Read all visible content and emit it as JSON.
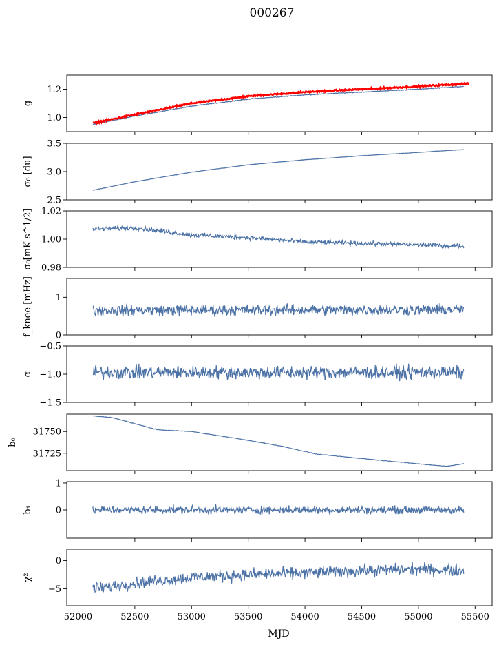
{
  "figure_title": "000267",
  "chart_data": [
    {
      "type": "line",
      "ylabel": "g",
      "ylim": [
        0.9,
        1.3
      ],
      "yticks": [
        1.0,
        1.2
      ],
      "ytick_labels": [
        "1.0",
        "1.2"
      ],
      "xlim": [
        51900,
        55650
      ],
      "series": [
        {
          "color": "#4c72a6",
          "x": [
            52130,
            52500,
            53000,
            53500,
            54000,
            54500,
            55000,
            55400
          ],
          "y": [
            0.95,
            1.01,
            1.08,
            1.13,
            1.16,
            1.18,
            1.2,
            1.22
          ],
          "noise": 0.002
        },
        {
          "color": "#ff0000",
          "x": [
            52130,
            52500,
            53000,
            53500,
            54000,
            54500,
            55000,
            55450
          ],
          "y": [
            0.96,
            1.02,
            1.1,
            1.15,
            1.18,
            1.2,
            1.22,
            1.24
          ],
          "noise": 0.004
        }
      ]
    },
    {
      "type": "line",
      "ylabel": "σ₀ [du]",
      "ylim": [
        2.5,
        3.5
      ],
      "yticks": [
        2.5,
        3.0,
        3.5
      ],
      "ytick_labels": [
        "2.5",
        "3.0",
        "3.5"
      ],
      "xlim": [
        51900,
        55650
      ],
      "series": [
        {
          "color": "#4c72a6",
          "x": [
            52130,
            52500,
            53000,
            53500,
            54000,
            54500,
            55000,
            55400
          ],
          "y": [
            2.67,
            2.82,
            2.99,
            3.12,
            3.21,
            3.28,
            3.34,
            3.39
          ],
          "noise": 0.003
        }
      ]
    },
    {
      "type": "line",
      "ylabel": "σ₀[mK s^1/2]",
      "ylim": [
        0.98,
        1.02
      ],
      "yticks": [
        0.98,
        1.0,
        1.02
      ],
      "ytick_labels": [
        "0.98",
        "1.00",
        "1.02"
      ],
      "xlim": [
        51900,
        55650
      ],
      "series": [
        {
          "color": "#4c72a6",
          "x": [
            52130,
            52500,
            53000,
            53500,
            54000,
            54500,
            55000,
            55400
          ],
          "y": [
            1.007,
            1.008,
            1.003,
            1.001,
            0.998,
            0.997,
            0.996,
            0.995
          ],
          "noise": 0.0012
        }
      ]
    },
    {
      "type": "line",
      "ylabel": "f_knee [mHz]",
      "ylim": [
        0,
        1.5
      ],
      "yticks": [
        0,
        1
      ],
      "ytick_labels": [
        "0",
        "1"
      ],
      "xlim": [
        51900,
        55650
      ],
      "series": [
        {
          "color": "#4c72a6",
          "x": [
            52130,
            55400
          ],
          "y": [
            0.65,
            0.67
          ],
          "noise": 0.11
        }
      ]
    },
    {
      "type": "line",
      "ylabel": "α",
      "ylim": [
        -1.5,
        -0.5
      ],
      "yticks": [
        -1.5,
        -1.0,
        -0.5
      ],
      "ytick_labels": [
        "−1.5",
        "−1.0",
        "−0.5"
      ],
      "xlim": [
        51900,
        55650
      ],
      "series": [
        {
          "color": "#4c72a6",
          "x": [
            52130,
            55400
          ],
          "y": [
            -0.97,
            -0.97
          ],
          "noise": 0.09
        }
      ]
    },
    {
      "type": "line",
      "ylabel": "b₀",
      "ylim": [
        31705,
        31770
      ],
      "yticks": [
        31725,
        31750
      ],
      "ytick_labels": [
        "31725",
        "31750"
      ],
      "xlim": [
        51900,
        55650
      ],
      "series": [
        {
          "color": "#4c72a6",
          "x": [
            52130,
            52300,
            52700,
            53000,
            53400,
            53800,
            54100,
            54500,
            54900,
            55250,
            55400
          ],
          "y": [
            31768,
            31766,
            31752,
            31750,
            31742,
            31733,
            31724,
            31719,
            31714,
            31710,
            31713
          ],
          "noise": 0.25
        }
      ]
    },
    {
      "type": "line",
      "ylabel": "b₁",
      "ylim": [
        -1.05,
        1.05
      ],
      "yticks": [
        0,
        1
      ],
      "ytick_labels": [
        "0",
        "1"
      ],
      "xlim": [
        51900,
        55650
      ],
      "series": [
        {
          "color": "#4c72a6",
          "x": [
            52130,
            55400
          ],
          "y": [
            0.0,
            0.0
          ],
          "noise": 0.11
        }
      ]
    },
    {
      "type": "line",
      "ylabel": "χ²",
      "ylim": [
        -8,
        2
      ],
      "yticks": [
        -5,
        0
      ],
      "ytick_labels": [
        "−5",
        "0"
      ],
      "xlim": [
        51900,
        55650
      ],
      "series": [
        {
          "color": "#4c72a6",
          "x": [
            52130,
            52500,
            53000,
            53500,
            54000,
            54500,
            55000,
            55400
          ],
          "y": [
            -5.0,
            -4.0,
            -3.0,
            -2.5,
            -2.2,
            -1.8,
            -1.5,
            -1.8
          ],
          "noise": 0.8
        }
      ]
    }
  ],
  "xaxis": {
    "label": "MJD",
    "ticks": [
      52000,
      52500,
      53000,
      53500,
      54000,
      54500,
      55000,
      55500
    ],
    "tick_labels": [
      "52000",
      "52500",
      "53000",
      "53500",
      "54000",
      "54500",
      "55000",
      "55500"
    ]
  }
}
